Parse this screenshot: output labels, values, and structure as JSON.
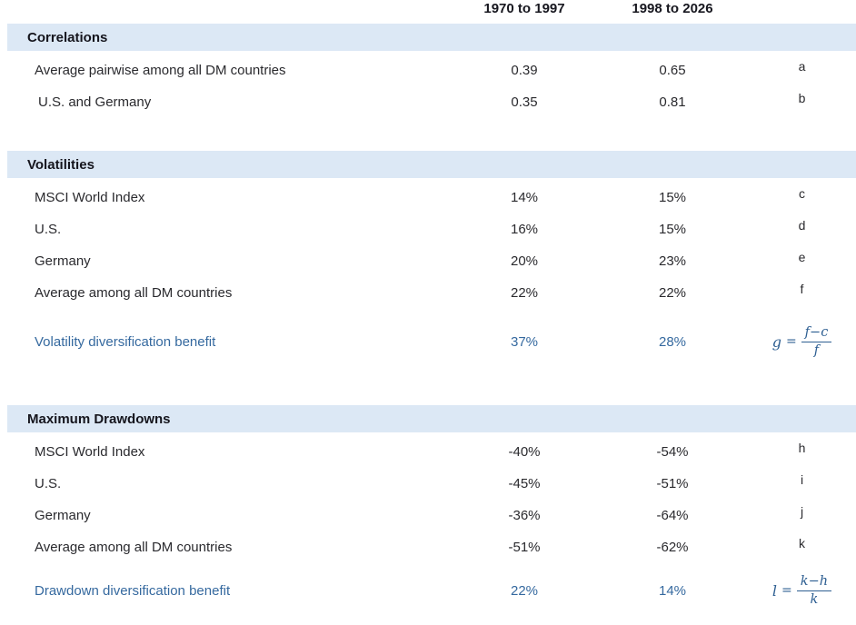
{
  "col_headers": [
    "1970 to 1997",
    "1998 to 2026"
  ],
  "sections": [
    {
      "title": "Correlations",
      "rows": [
        {
          "label": "Average pairwise among all DM countries",
          "v1": "0.39",
          "v2": "0.65",
          "note": "a"
        },
        {
          "label": "U.S. and Germany",
          "v1": "0.35",
          "v2": "0.81",
          "note": "b"
        }
      ]
    },
    {
      "title": "Volatilities",
      "rows": [
        {
          "label": "MSCI World Index",
          "v1": "14%",
          "v2": "15%",
          "note": "c"
        },
        {
          "label": "U.S.",
          "v1": "16%",
          "v2": "15%",
          "note": "d"
        },
        {
          "label": "Germany",
          "v1": "20%",
          "v2": "23%",
          "note": "e"
        },
        {
          "label": "Average among all DM countries",
          "v1": "22%",
          "v2": "22%",
          "note": "f"
        }
      ],
      "benefit": {
        "label": "Volatility diversification benefit",
        "v1": "37%",
        "v2": "28%",
        "formula": {
          "lhs": "g",
          "eq": "=",
          "numerator": "f−c",
          "denominator": "f"
        }
      }
    },
    {
      "title": "Maximum Drawdowns",
      "rows": [
        {
          "label": "MSCI World Index",
          "v1": "-40%",
          "v2": "-54%",
          "note": "h"
        },
        {
          "label": "U.S.",
          "v1": "-45%",
          "v2": "-51%",
          "note": "i"
        },
        {
          "label": "Germany",
          "v1": "-36%",
          "v2": "-64%",
          "note": "j"
        },
        {
          "label": "Average among all DM countries",
          "v1": "-51%",
          "v2": "-62%",
          "note": "k"
        }
      ],
      "benefit": {
        "label": "Drawdown diversification benefit",
        "v1": "22%",
        "v2": "14%",
        "formula": {
          "lhs": "l",
          "eq": "=",
          "numerator": "k−h",
          "denominator": "k"
        }
      }
    }
  ],
  "colors": {
    "section_bar_bg": "#dce8f5",
    "benefit_text": "#35699f",
    "formula_text": "#2e5f92",
    "body_text": "#2a2a2e"
  }
}
